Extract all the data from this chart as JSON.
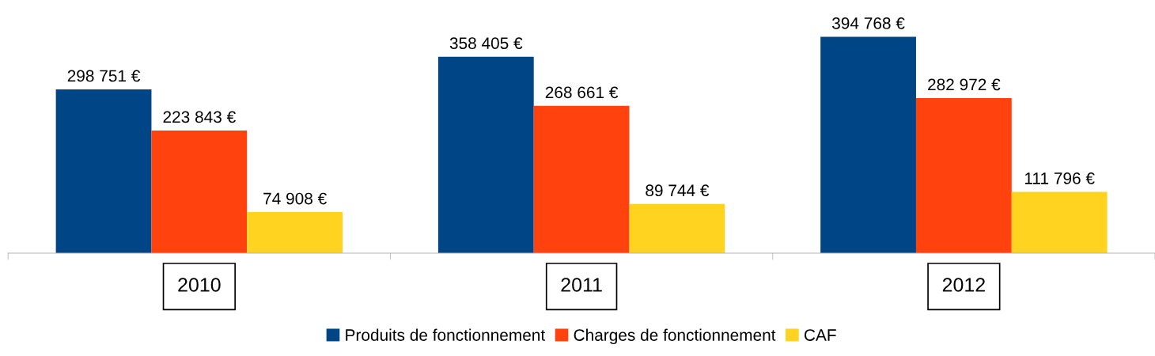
{
  "chart_data": {
    "type": "bar",
    "categories": [
      "2010",
      "2011",
      "2012"
    ],
    "series": [
      {
        "name": "Produits de fonctionnement",
        "color": "#004586",
        "values": [
          298751,
          358405,
          394768
        ],
        "value_labels": [
          "298 751 €",
          "358 405 €",
          "394 768 €"
        ]
      },
      {
        "name": "Charges de fonctionnement",
        "color": "#ff420e",
        "values": [
          223843,
          268661,
          282972
        ],
        "value_labels": [
          "223 843 €",
          "268 661 €",
          "282 972 €"
        ]
      },
      {
        "name": "CAF",
        "color": "#ffd320",
        "values": [
          74908,
          89744,
          111796
        ],
        "value_labels": [
          "74 908 €",
          "89 744 €",
          "111 796 €"
        ]
      }
    ],
    "legend": "bottom",
    "tick_labels": "x"
  }
}
